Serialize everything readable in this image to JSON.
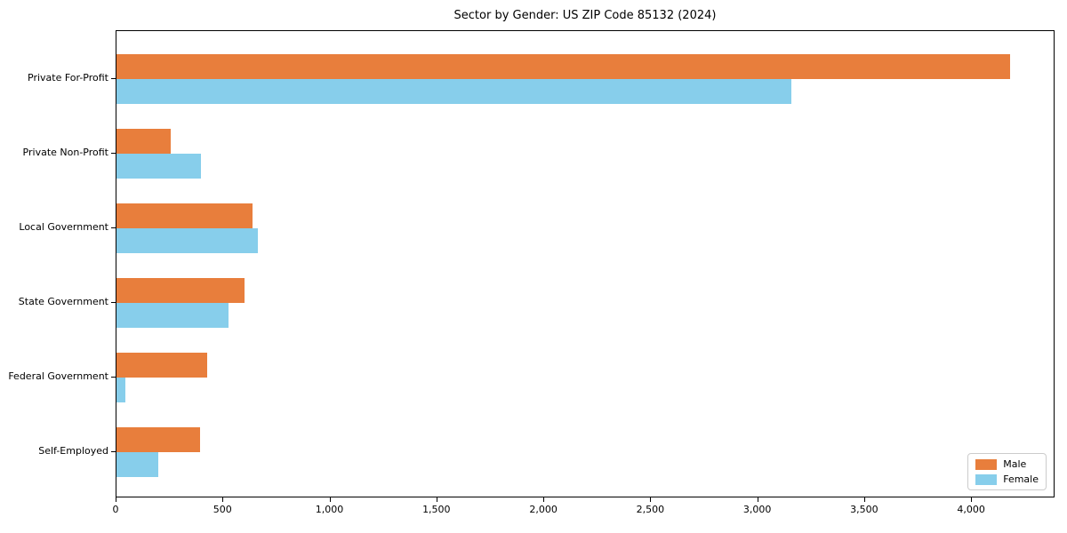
{
  "chart_data": {
    "type": "bar",
    "orientation": "horizontal",
    "title": "Sector by Gender: US ZIP Code 85132 (2024)",
    "categories": [
      "Private For-Profit",
      "Private Non-Profit",
      "Local Government",
      "State Government",
      "Federal Government",
      "Self-Employed"
    ],
    "series": [
      {
        "name": "Male",
        "color": "#E87E3C",
        "values": [
          4180,
          255,
          635,
          600,
          425,
          390
        ]
      },
      {
        "name": "Female",
        "color": "#87CEEB",
        "values": [
          3155,
          395,
          660,
          525,
          40,
          195
        ]
      }
    ],
    "xlabel": "",
    "ylabel": "",
    "xlim": [
      0,
      4390
    ],
    "xticks": [
      0,
      500,
      1000,
      1500,
      2000,
      2500,
      3000,
      3500,
      4000
    ],
    "xtick_labels": [
      "0",
      "500",
      "1,000",
      "1,500",
      "2,000",
      "2,500",
      "3,000",
      "3,500",
      "4,000"
    ],
    "grid": false,
    "legend_position": "lower right"
  }
}
